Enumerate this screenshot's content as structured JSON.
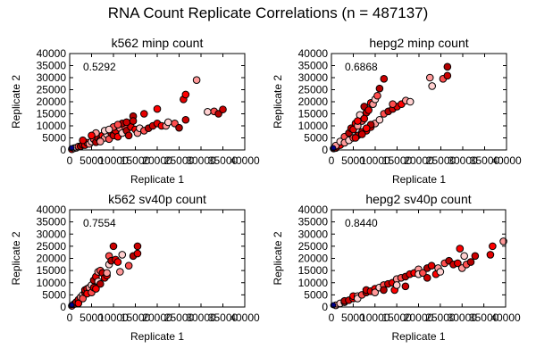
{
  "figure_title": "RNA Count Replicate Correlations (n = 487137)",
  "palette": [
    "#ff0000",
    "#cc0000",
    "#ff4d4d",
    "#ff9999",
    "#e60000",
    "#b30000",
    "#ffd0d0"
  ],
  "edge_color": "#000000",
  "origin_color": "#00008b",
  "chart_data": [
    {
      "type": "scatter",
      "title": "k562 minp count",
      "annotation": "0.5292",
      "xlabel": "Replicate 1",
      "ylabel": "Replicate 2",
      "xlim": [
        0,
        40000
      ],
      "ylim": [
        0,
        40000
      ],
      "xticks": [
        "0",
        "5000",
        "10000",
        "15000",
        "20000",
        "25000",
        "30000",
        "35000",
        "40000"
      ],
      "yticks": [
        "0",
        "5000",
        "10000",
        "15000",
        "20000",
        "25000",
        "30000",
        "35000",
        "40000"
      ],
      "points": [
        [
          500,
          300
        ],
        [
          1000,
          700
        ],
        [
          1500,
          900
        ],
        [
          2000,
          1400
        ],
        [
          2500,
          1500
        ],
        [
          3000,
          2200
        ],
        [
          3500,
          2000
        ],
        [
          4000,
          3000
        ],
        [
          4500,
          2500
        ],
        [
          5000,
          3500
        ],
        [
          5500,
          4500
        ],
        [
          6000,
          3200
        ],
        [
          6500,
          5000
        ],
        [
          7000,
          4000
        ],
        [
          7500,
          6000
        ],
        [
          8000,
          5000
        ],
        [
          8500,
          6500
        ],
        [
          9000,
          4500
        ],
        [
          9500,
          7000
        ],
        [
          10000,
          6000
        ],
        [
          10500,
          8000
        ],
        [
          11000,
          5500
        ],
        [
          11500,
          9000
        ],
        [
          12000,
          7000
        ],
        [
          12500,
          10000
        ],
        [
          13000,
          8000
        ],
        [
          13500,
          6000
        ],
        [
          14000,
          9500
        ],
        [
          15000,
          8500
        ],
        [
          15500,
          7000
        ],
        [
          16000,
          9000
        ],
        [
          17000,
          8000
        ],
        [
          18000,
          9000
        ],
        [
          19000,
          10000
        ],
        [
          20000,
          11000
        ],
        [
          21000,
          10000
        ],
        [
          6000,
          7000
        ],
        [
          8000,
          8000
        ],
        [
          10000,
          9500
        ],
        [
          12000,
          11000
        ],
        [
          13000,
          11500
        ],
        [
          3000,
          4000
        ],
        [
          5000,
          6000
        ],
        [
          7000,
          3500
        ],
        [
          9000,
          8500
        ],
        [
          11000,
          10500
        ],
        [
          14500,
          14000
        ],
        [
          14500,
          12000
        ],
        [
          17000,
          15000
        ],
        [
          20000,
          17000
        ],
        [
          22000,
          10000
        ],
        [
          22500,
          11500
        ],
        [
          24000,
          11000
        ],
        [
          25000,
          9200
        ],
        [
          26500,
          12500
        ],
        [
          26000,
          21000
        ],
        [
          26500,
          23000
        ],
        [
          29000,
          29000
        ],
        [
          31500,
          15800
        ],
        [
          33000,
          16000
        ],
        [
          34000,
          15000
        ],
        [
          35000,
          16800
        ]
      ]
    },
    {
      "type": "scatter",
      "title": "hepg2 minp count",
      "annotation": "0.6868",
      "xlabel": "Replicate 1",
      "ylabel": "Replicate 2",
      "xlim": [
        0,
        40000
      ],
      "ylim": [
        0,
        40000
      ],
      "xticks": [
        "0",
        "5000",
        "10000",
        "15000",
        "20000",
        "25000",
        "30000",
        "35000",
        "40000"
      ],
      "yticks": [
        "0",
        "5000",
        "10000",
        "15000",
        "20000",
        "25000",
        "30000",
        "35000",
        "40000"
      ],
      "points": [
        [
          500,
          600
        ],
        [
          1000,
          800
        ],
        [
          2000,
          2000
        ],
        [
          1000,
          1800
        ],
        [
          2000,
          3500
        ],
        [
          3000,
          5500
        ],
        [
          4000,
          7000
        ],
        [
          4500,
          9000
        ],
        [
          5000,
          8500
        ],
        [
          5500,
          11000
        ],
        [
          6000,
          10000
        ],
        [
          6500,
          14500
        ],
        [
          7000,
          12000
        ],
        [
          7500,
          18000
        ],
        [
          8000,
          15500
        ],
        [
          8500,
          16500
        ],
        [
          9000,
          19500
        ],
        [
          9500,
          19000
        ],
        [
          10000,
          21000
        ],
        [
          10500,
          22500
        ],
        [
          11000,
          25500
        ],
        [
          12000,
          29500
        ],
        [
          7500,
          13000
        ],
        [
          6000,
          12000
        ],
        [
          3000,
          3000
        ],
        [
          4000,
          4000
        ],
        [
          5000,
          5000
        ],
        [
          6000,
          6000
        ],
        [
          7000,
          7500
        ],
        [
          8000,
          8000
        ],
        [
          9000,
          9500
        ],
        [
          10000,
          11000
        ],
        [
          11000,
          12500
        ],
        [
          12000,
          15000
        ],
        [
          13000,
          16000
        ],
        [
          14000,
          17000
        ],
        [
          15000,
          18000
        ],
        [
          16000,
          19000
        ],
        [
          17000,
          20500
        ],
        [
          18000,
          20000
        ],
        [
          14000,
          19000
        ],
        [
          9000,
          10500
        ],
        [
          7000,
          6500
        ],
        [
          5500,
          5000
        ],
        [
          8000,
          9000
        ],
        [
          22500,
          30000
        ],
        [
          23000,
          26500
        ],
        [
          25500,
          29500
        ],
        [
          26500,
          34500
        ],
        [
          26500,
          30800
        ]
      ]
    },
    {
      "type": "scatter",
      "title": "k562 sv40p count",
      "annotation": "0.7554",
      "xlabel": "Replicate 1",
      "ylabel": "Replicate 2",
      "xlim": [
        0,
        40000
      ],
      "ylim": [
        0,
        40000
      ],
      "xticks": [
        "0",
        "5000",
        "10000",
        "15000",
        "20000",
        "25000",
        "30000",
        "35000",
        "40000"
      ],
      "yticks": [
        "0",
        "5000",
        "10000",
        "15000",
        "20000",
        "25000",
        "30000",
        "35000",
        "40000"
      ],
      "points": [
        [
          500,
          500
        ],
        [
          1000,
          1200
        ],
        [
          1500,
          2000
        ],
        [
          2000,
          3000
        ],
        [
          2000,
          1500
        ],
        [
          2500,
          4000
        ],
        [
          3000,
          5000
        ],
        [
          3000,
          3500
        ],
        [
          3500,
          6000
        ],
        [
          3500,
          7000
        ],
        [
          4000,
          7500
        ],
        [
          4000,
          5500
        ],
        [
          4500,
          8000
        ],
        [
          5000,
          9000
        ],
        [
          5000,
          6000
        ],
        [
          5500,
          11000
        ],
        [
          5500,
          8000
        ],
        [
          6000,
          12500
        ],
        [
          6000,
          7500
        ],
        [
          6500,
          14500
        ],
        [
          6500,
          10500
        ],
        [
          7000,
          15000
        ],
        [
          7000,
          9500
        ],
        [
          7500,
          14000
        ],
        [
          8000,
          12000
        ],
        [
          8500,
          13000
        ],
        [
          8500,
          14000
        ],
        [
          9000,
          17500
        ],
        [
          9000,
          21000
        ],
        [
          9500,
          19000
        ],
        [
          10000,
          25000
        ],
        [
          10500,
          19500
        ],
        [
          11000,
          18500
        ],
        [
          11500,
          14500
        ],
        [
          12000,
          21500
        ],
        [
          13500,
          17000
        ],
        [
          14500,
          21000
        ],
        [
          15500,
          25000
        ],
        [
          15500,
          22000
        ]
      ]
    },
    {
      "type": "scatter",
      "title": "hepg2 sv40p count",
      "annotation": "0.8440",
      "xlabel": "Replicate 1",
      "ylabel": "Replicate 2",
      "xlim": [
        0,
        40000
      ],
      "ylim": [
        0,
        40000
      ],
      "xticks": [
        "0",
        "5000",
        "10000",
        "15000",
        "20000",
        "25000",
        "30000",
        "35000",
        "40000"
      ],
      "yticks": [
        "0",
        "5000",
        "10000",
        "15000",
        "20000",
        "25000",
        "30000",
        "35000",
        "40000"
      ],
      "points": [
        [
          1000,
          700
        ],
        [
          2000,
          1500
        ],
        [
          3000,
          2000
        ],
        [
          3000,
          2500
        ],
        [
          4000,
          2800
        ],
        [
          5000,
          3500
        ],
        [
          5000,
          4500
        ],
        [
          6000,
          4500
        ],
        [
          6000,
          3500
        ],
        [
          7000,
          5000
        ],
        [
          8000,
          6000
        ],
        [
          8000,
          7000
        ],
        [
          9000,
          6500
        ],
        [
          10000,
          7500
        ],
        [
          10000,
          6000
        ],
        [
          11000,
          8000
        ],
        [
          12000,
          9000
        ],
        [
          12000,
          7000
        ],
        [
          13000,
          9500
        ],
        [
          14000,
          10000
        ],
        [
          14500,
          7000
        ],
        [
          15000,
          11500
        ],
        [
          15000,
          9000
        ],
        [
          16000,
          12000
        ],
        [
          17000,
          12500
        ],
        [
          17000,
          8500
        ],
        [
          18000,
          13500
        ],
        [
          19000,
          14000
        ],
        [
          20000,
          15500
        ],
        [
          20000,
          13500
        ],
        [
          21000,
          14000
        ],
        [
          22000,
          16000
        ],
        [
          22000,
          12000
        ],
        [
          23000,
          17000
        ],
        [
          24000,
          13500
        ],
        [
          24500,
          16000
        ],
        [
          25000,
          14500
        ],
        [
          26000,
          18000
        ],
        [
          27000,
          19000
        ],
        [
          28000,
          17500
        ],
        [
          29000,
          18000
        ],
        [
          29500,
          24000
        ],
        [
          30000,
          16000
        ],
        [
          30500,
          21000
        ],
        [
          31000,
          17500
        ],
        [
          32000,
          18500
        ],
        [
          33000,
          21000
        ],
        [
          36500,
          21500
        ],
        [
          37000,
          25000
        ],
        [
          39500,
          27000
        ]
      ]
    }
  ]
}
